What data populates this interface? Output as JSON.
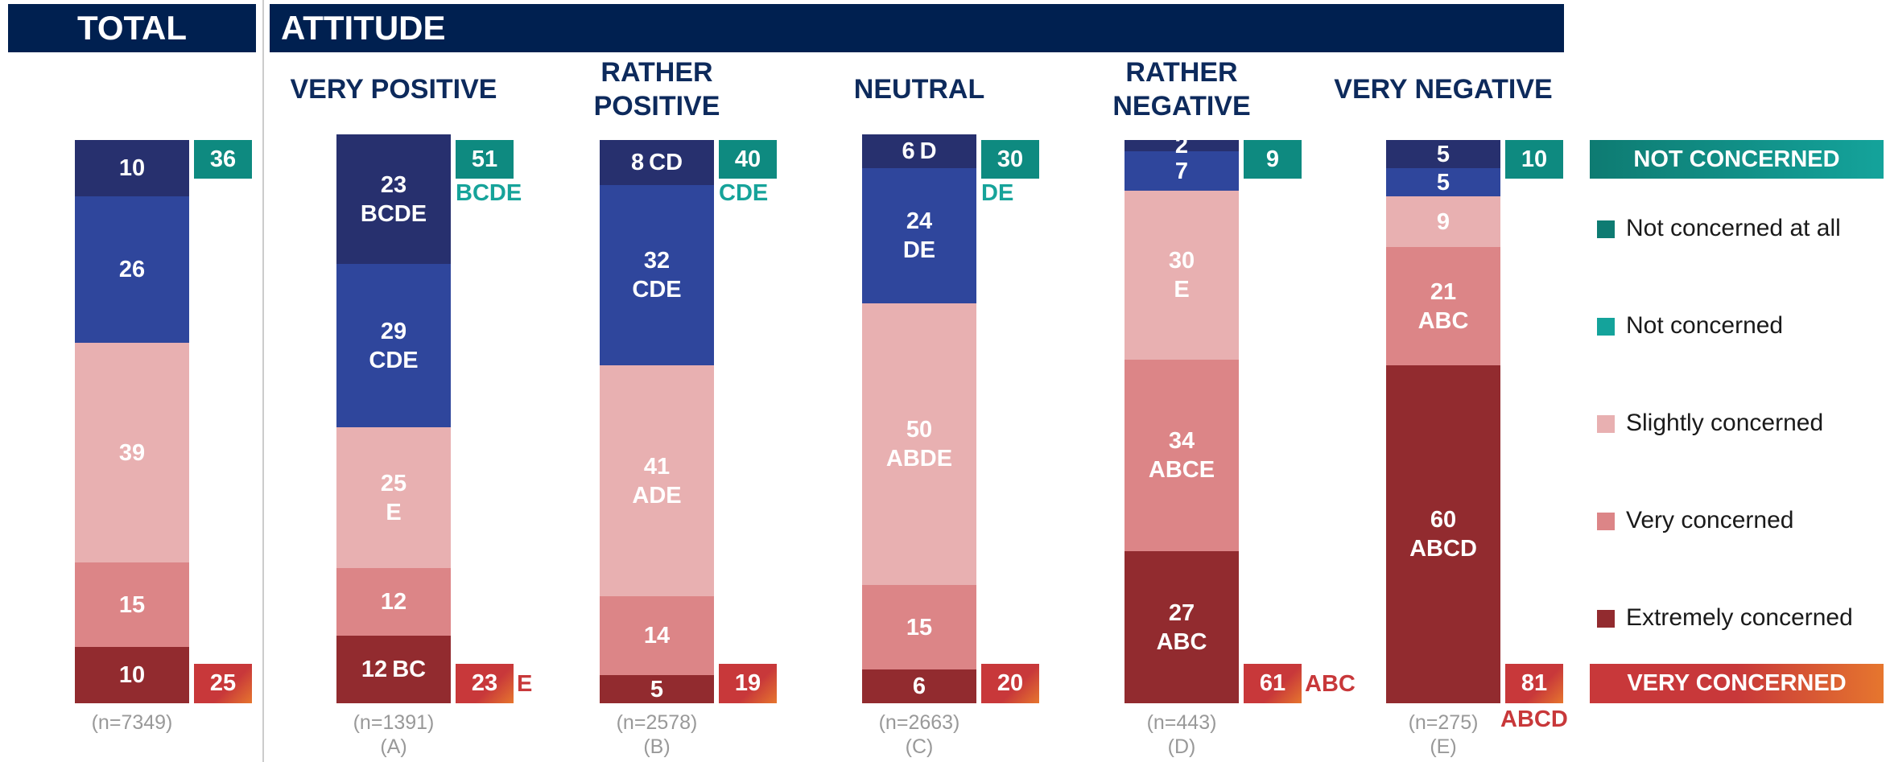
{
  "header": {
    "total": "TOTAL",
    "attitude": "ATTITUDE"
  },
  "chart_data": {
    "type": "stacked_bar",
    "categories": [
      null,
      "VERY POSITIVE",
      "RATHER\nPOSITIVE",
      "NEUTRAL",
      "RATHER\nNEGATIVE",
      "VERY NEGATIVE"
    ],
    "ylim": [
      0,
      100
    ],
    "series": [
      {
        "name": "Not concerned at all",
        "color": "#27306e",
        "legend_color": "#0e7b72",
        "values": [
          10,
          23,
          8,
          6,
          2,
          5
        ],
        "sig": [
          null,
          "BCDE",
          "CD",
          "D",
          null,
          null
        ]
      },
      {
        "name": "Not concerned",
        "color": "#2f469c",
        "legend_color": "#14a39b",
        "values": [
          26,
          29,
          32,
          24,
          7,
          5
        ],
        "sig": [
          null,
          "CDE",
          "CDE",
          "DE",
          null,
          null
        ]
      },
      {
        "name": "Slightly concerned",
        "color": "#e8b0b1",
        "legend_color": "#e8b0b1",
        "values": [
          39,
          25,
          41,
          50,
          30,
          9
        ],
        "sig": [
          null,
          "E",
          "ADE",
          "ABDE",
          "E",
          null
        ]
      },
      {
        "name": "Very concerned",
        "color": "#dc8587",
        "legend_color": "#dc8587",
        "values": [
          15,
          12,
          14,
          15,
          34,
          21
        ],
        "sig": [
          null,
          null,
          null,
          null,
          "ABCE",
          "ABC"
        ]
      },
      {
        "name": "Extremely concerned",
        "color": "#922b2f",
        "legend_color": "#922b2f",
        "values": [
          10,
          12,
          5,
          6,
          27,
          60
        ],
        "sig": [
          null,
          "BC",
          null,
          null,
          "ABC",
          "ABCD"
        ]
      }
    ],
    "n_labels": [
      "(n=7349)",
      "(n=1391)",
      "(n=2578)",
      "(n=2663)",
      "(n=443)",
      "(n=275)"
    ],
    "group_letters": [
      null,
      "(A)",
      "(B)",
      "(C)",
      "(D)",
      "(E)"
    ],
    "not_concerned": {
      "label": "NOT CONCERNED",
      "values": [
        36,
        51,
        40,
        30,
        9,
        10
      ],
      "sig": [
        null,
        "BCDE",
        "CDE",
        "DE",
        null,
        null
      ]
    },
    "very_concerned": {
      "label": "VERY CONCERNED",
      "values": [
        25,
        23,
        19,
        20,
        61,
        81
      ],
      "sig": [
        null,
        "E",
        null,
        null,
        "ABC",
        "ABCD"
      ]
    }
  }
}
